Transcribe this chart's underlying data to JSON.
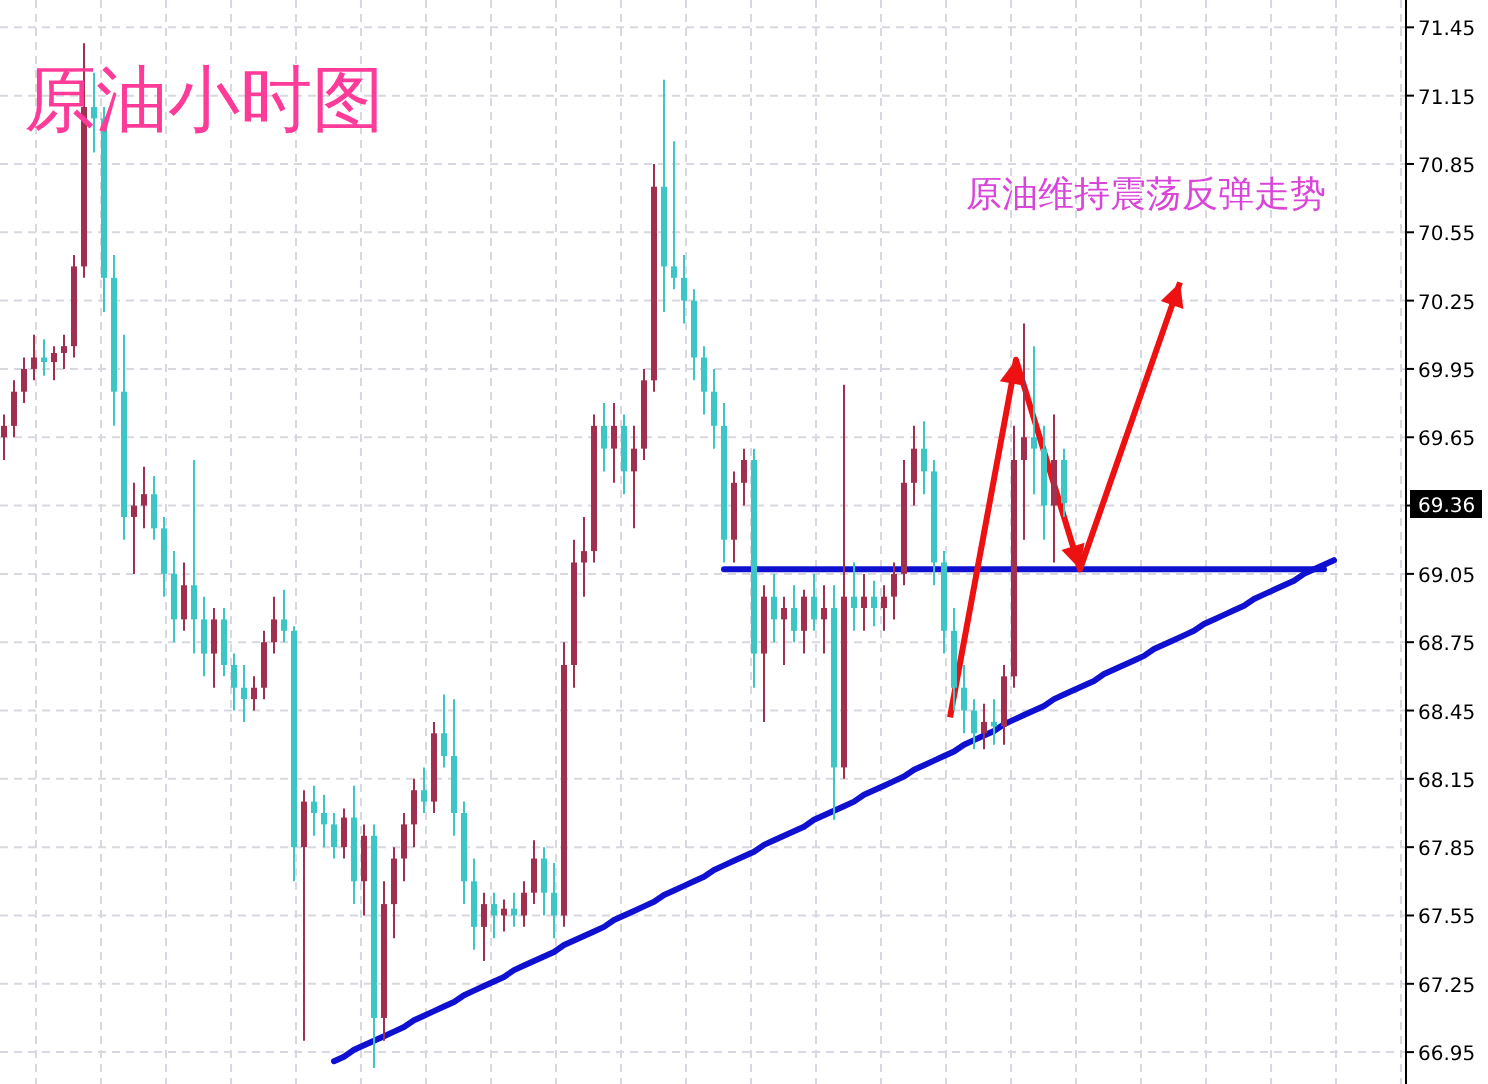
{
  "chart_data": {
    "type": "candlestick",
    "title": "原油小时图",
    "annotations": [
      "原油维持震荡反弹走势",
      "69.36"
    ],
    "ohlc": [
      [
        69.65,
        69.75,
        69.55,
        69.7
      ],
      [
        69.7,
        69.9,
        69.65,
        69.85
      ],
      [
        69.85,
        70.0,
        69.8,
        69.95
      ],
      [
        69.95,
        70.1,
        69.9,
        70.0
      ],
      [
        70.0,
        70.08,
        69.92,
        69.98
      ],
      [
        69.98,
        70.05,
        69.9,
        70.02
      ],
      [
        70.02,
        70.1,
        69.95,
        70.05
      ],
      [
        70.05,
        70.45,
        70.0,
        70.4
      ],
      [
        70.4,
        71.38,
        70.35,
        71.1
      ],
      [
        71.1,
        71.25,
        70.9,
        71.05
      ],
      [
        71.05,
        71.1,
        70.2,
        70.35
      ],
      [
        70.35,
        70.45,
        69.7,
        69.85
      ],
      [
        69.85,
        70.1,
        69.2,
        69.3
      ],
      [
        69.3,
        69.45,
        69.05,
        69.35
      ],
      [
        69.35,
        69.52,
        69.25,
        69.4
      ],
      [
        69.4,
        69.48,
        69.2,
        69.25
      ],
      [
        69.25,
        69.3,
        68.95,
        69.05
      ],
      [
        69.05,
        69.15,
        68.75,
        68.85
      ],
      [
        68.85,
        69.1,
        68.8,
        69.0
      ],
      [
        69.0,
        69.55,
        68.7,
        68.85
      ],
      [
        68.85,
        68.95,
        68.6,
        68.7
      ],
      [
        68.7,
        68.9,
        68.55,
        68.85
      ],
      [
        68.85,
        68.9,
        68.6,
        68.65
      ],
      [
        68.65,
        68.7,
        68.45,
        68.55
      ],
      [
        68.55,
        68.65,
        68.4,
        68.5
      ],
      [
        68.5,
        68.6,
        68.45,
        68.55
      ],
      [
        68.55,
        68.8,
        68.5,
        68.75
      ],
      [
        68.75,
        68.95,
        68.7,
        68.85
      ],
      [
        68.85,
        68.98,
        68.75,
        68.8
      ],
      [
        68.8,
        68.82,
        67.7,
        67.85
      ],
      [
        67.85,
        68.1,
        67.0,
        68.05
      ],
      [
        68.05,
        68.12,
        67.9,
        68.0
      ],
      [
        68.0,
        68.08,
        67.85,
        67.95
      ],
      [
        67.95,
        68.0,
        67.8,
        67.85
      ],
      [
        67.85,
        68.02,
        67.8,
        67.98
      ],
      [
        67.98,
        68.12,
        67.6,
        67.7
      ],
      [
        67.7,
        67.95,
        67.55,
        67.9
      ],
      [
        67.9,
        67.95,
        66.88,
        67.1
      ],
      [
        67.1,
        67.7,
        67.0,
        67.6
      ],
      [
        67.6,
        67.85,
        67.45,
        67.8
      ],
      [
        67.8,
        68.0,
        67.7,
        67.95
      ],
      [
        67.95,
        68.15,
        67.85,
        68.1
      ],
      [
        68.1,
        68.2,
        68.0,
        68.05
      ],
      [
        68.05,
        68.4,
        68.0,
        68.35
      ],
      [
        68.35,
        68.52,
        68.2,
        68.25
      ],
      [
        68.25,
        68.5,
        67.9,
        68.0
      ],
      [
        68.0,
        68.05,
        67.6,
        67.7
      ],
      [
        67.7,
        67.8,
        67.4,
        67.5
      ],
      [
        67.5,
        67.65,
        67.35,
        67.6
      ],
      [
        67.6,
        67.65,
        67.45,
        67.55
      ],
      [
        67.55,
        67.62,
        67.48,
        67.58
      ],
      [
        67.58,
        67.65,
        67.5,
        67.55
      ],
      [
        67.55,
        67.7,
        67.5,
        67.65
      ],
      [
        67.65,
        67.88,
        67.6,
        67.8
      ],
      [
        67.8,
        67.85,
        67.55,
        67.65
      ],
      [
        67.65,
        67.78,
        67.45,
        67.55
      ],
      [
        67.55,
        68.75,
        67.5,
        68.65
      ],
      [
        68.65,
        69.2,
        68.55,
        69.1
      ],
      [
        69.1,
        69.3,
        68.95,
        69.15
      ],
      [
        69.15,
        69.75,
        69.1,
        69.7
      ],
      [
        69.7,
        69.8,
        69.5,
        69.6
      ],
      [
        69.6,
        69.8,
        69.45,
        69.7
      ],
      [
        69.7,
        69.75,
        69.4,
        69.5
      ],
      [
        69.5,
        69.7,
        69.25,
        69.6
      ],
      [
        69.6,
        69.95,
        69.55,
        69.9
      ],
      [
        69.9,
        70.85,
        69.85,
        70.75
      ],
      [
        70.75,
        71.22,
        70.2,
        70.4
      ],
      [
        70.4,
        70.95,
        70.3,
        70.35
      ],
      [
        70.35,
        70.45,
        70.15,
        70.25
      ],
      [
        70.25,
        70.3,
        69.9,
        70.0
      ],
      [
        70.0,
        70.05,
        69.75,
        69.85
      ],
      [
        69.85,
        69.95,
        69.6,
        69.7
      ],
      [
        69.7,
        69.8,
        69.1,
        69.2
      ],
      [
        69.2,
        69.5,
        69.1,
        69.45
      ],
      [
        69.45,
        69.6,
        69.35,
        69.55
      ],
      [
        69.55,
        69.6,
        68.55,
        68.7
      ],
      [
        68.7,
        69.0,
        68.4,
        68.95
      ],
      [
        68.95,
        69.05,
        68.75,
        68.85
      ],
      [
        68.85,
        68.95,
        68.65,
        68.9
      ],
      [
        68.9,
        69.0,
        68.75,
        68.8
      ],
      [
        68.8,
        68.98,
        68.7,
        68.95
      ],
      [
        68.95,
        69.05,
        68.8,
        68.85
      ],
      [
        68.85,
        69.0,
        68.7,
        68.9
      ],
      [
        68.9,
        69.0,
        67.97,
        68.2
      ],
      [
        68.2,
        69.88,
        68.15,
        68.95
      ],
      [
        68.95,
        69.1,
        68.8,
        68.9
      ],
      [
        68.9,
        69.05,
        68.8,
        68.95
      ],
      [
        68.95,
        69.02,
        68.82,
        68.9
      ],
      [
        68.9,
        69.0,
        68.8,
        68.95
      ],
      [
        68.95,
        69.1,
        68.85,
        69.05
      ],
      [
        69.05,
        69.55,
        69.0,
        69.45
      ],
      [
        69.45,
        69.7,
        69.35,
        69.6
      ],
      [
        69.6,
        69.72,
        69.4,
        69.5
      ],
      [
        69.5,
        69.55,
        69.0,
        69.1
      ],
      [
        69.1,
        69.15,
        68.7,
        68.8
      ],
      [
        68.8,
        68.9,
        68.45,
        68.55
      ],
      [
        68.55,
        68.65,
        68.35,
        68.45
      ],
      [
        68.45,
        68.5,
        68.28,
        68.35
      ],
      [
        68.35,
        68.48,
        68.28,
        68.4
      ],
      [
        68.4,
        68.5,
        68.3,
        68.38
      ],
      [
        68.38,
        68.65,
        68.3,
        68.6
      ],
      [
        68.6,
        69.7,
        68.55,
        69.55
      ],
      [
        69.55,
        70.15,
        69.2,
        69.65
      ],
      [
        69.65,
        70.05,
        69.4,
        69.6
      ],
      [
        69.6,
        69.7,
        69.2,
        69.35
      ],
      [
        69.35,
        69.75,
        69.1,
        69.55
      ],
      [
        69.55,
        69.6,
        69.3,
        69.36
      ],
      null,
      null,
      null,
      null,
      null,
      null,
      null,
      null,
      null,
      null,
      null,
      null,
      null,
      null,
      null,
      null,
      null,
      null,
      null,
      null,
      null,
      null,
      null,
      null,
      null,
      null,
      null
    ],
    "colors": [
      "#a0304f",
      "#a0304f",
      "#a0304f",
      "#a0304f",
      "#3ec6c6",
      "#a0304f",
      "#a0304f",
      "#a0304f",
      "#a0304f",
      "#3ec6c6",
      "#3ec6c6",
      "#3ec6c6",
      "#3ec6c6",
      "#a0304f",
      "#a0304f",
      "#3ec6c6",
      "#3ec6c6",
      "#3ec6c6",
      "#a0304f",
      "#3ec6c6",
      "#3ec6c6",
      "#a0304f",
      "#3ec6c6",
      "#3ec6c6",
      "#3ec6c6",
      "#a0304f",
      "#a0304f",
      "#a0304f",
      "#3ec6c6",
      "#3ec6c6",
      "#a0304f",
      "#3ec6c6",
      "#3ec6c6",
      "#3ec6c6",
      "#a0304f",
      "#3ec6c6",
      "#a0304f",
      "#3ec6c6",
      "#a0304f",
      "#a0304f",
      "#a0304f",
      "#a0304f",
      "#3ec6c6",
      "#a0304f",
      "#3ec6c6",
      "#3ec6c6",
      "#3ec6c6",
      "#3ec6c6",
      "#a0304f",
      "#3ec6c6",
      "#a0304f",
      "#3ec6c6",
      "#a0304f",
      "#a0304f",
      "#3ec6c6",
      "#3ec6c6",
      "#a0304f",
      "#a0304f",
      "#a0304f",
      "#a0304f",
      "#3ec6c6",
      "#a0304f",
      "#3ec6c6",
      "#a0304f",
      "#a0304f",
      "#a0304f",
      "#3ec6c6",
      "#3ec6c6",
      "#3ec6c6",
      "#3ec6c6",
      "#3ec6c6",
      "#3ec6c6",
      "#3ec6c6",
      "#a0304f",
      "#a0304f",
      "#3ec6c6",
      "#a0304f",
      "#3ec6c6",
      "#a0304f",
      "#3ec6c6",
      "#a0304f",
      "#3ec6c6",
      "#a0304f",
      "#3ec6c6",
      "#a0304f",
      "#3ec6c6",
      "#a0304f",
      "#3ec6c6",
      "#a0304f",
      "#a0304f",
      "#a0304f",
      "#a0304f",
      "#3ec6c6",
      "#3ec6c6",
      "#3ec6c6",
      "#3ec6c6",
      "#3ec6c6",
      "#3ec6c6",
      "#a0304f",
      "#3ec6c6",
      "#a0304f",
      "#a0304f",
      "#a0304f",
      "#3ec6c6",
      "#3ec6c6",
      "#a0304f",
      "#3ec6c6",
      null,
      null,
      null,
      null,
      null,
      null,
      null,
      null,
      null,
      null,
      null,
      null,
      null,
      null,
      null,
      null,
      null,
      null,
      null,
      null,
      null,
      null,
      null,
      null,
      null,
      null,
      null
    ],
    "series": [
      {
        "type": "line",
        "color": "#1010d0",
        "values": [
          null,
          null,
          null,
          null,
          null,
          null,
          null,
          null,
          null,
          null,
          null,
          null,
          null,
          null,
          null,
          null,
          null,
          null,
          null,
          null,
          null,
          null,
          null,
          null,
          null,
          null,
          null,
          null,
          null,
          null,
          null,
          null,
          null,
          66.91,
          66.93,
          66.96,
          66.98,
          67.0,
          67.02,
          67.04,
          67.06,
          67.09,
          67.11,
          67.13,
          67.15,
          67.17,
          67.2,
          67.22,
          67.24,
          67.26,
          67.28,
          67.31,
          67.33,
          67.35,
          67.37,
          67.39,
          67.42,
          67.44,
          67.46,
          67.48,
          67.5,
          67.53,
          67.55,
          67.57,
          67.59,
          67.61,
          67.64,
          67.66,
          67.68,
          67.7,
          67.72,
          67.75,
          67.77,
          67.79,
          67.81,
          67.83,
          67.86,
          67.88,
          67.9,
          67.92,
          67.94,
          67.97,
          67.99,
          68.01,
          68.03,
          68.05,
          68.08,
          68.1,
          68.12,
          68.14,
          68.16,
          68.19,
          68.21,
          68.23,
          68.25,
          68.27,
          68.3,
          68.32,
          68.34,
          68.36,
          68.39,
          68.41,
          68.43,
          68.45,
          68.47,
          68.5,
          68.52,
          68.54,
          68.56,
          68.58,
          68.61,
          68.63,
          68.65,
          68.67,
          68.69,
          68.72,
          68.74,
          68.76,
          68.78,
          68.8,
          68.83,
          68.85,
          68.87,
          68.89,
          68.91,
          68.94,
          68.96,
          68.98,
          69.0,
          69.02,
          69.05,
          69.07,
          69.09,
          69.11
        ]
      },
      {
        "type": "line",
        "color": "#1010d0",
        "values": [
          null,
          null,
          null,
          null,
          null,
          null,
          null,
          null,
          null,
          null,
          null,
          null,
          null,
          null,
          null,
          null,
          null,
          null,
          null,
          null,
          null,
          null,
          null,
          null,
          null,
          null,
          null,
          null,
          null,
          null,
          null,
          null,
          null,
          null,
          null,
          null,
          null,
          null,
          null,
          null,
          null,
          null,
          null,
          null,
          null,
          null,
          null,
          null,
          null,
          null,
          null,
          null,
          null,
          null,
          null,
          null,
          null,
          null,
          null,
          null,
          null,
          null,
          null,
          null,
          null,
          null,
          null,
          null,
          null,
          null,
          null,
          null,
          69.07,
          69.07,
          69.07,
          69.07,
          69.07,
          69.07,
          69.07,
          69.07,
          69.07,
          69.07,
          69.07,
          69.07,
          69.07,
          69.07,
          69.07,
          69.07,
          69.07,
          69.07,
          69.07,
          69.07,
          69.07,
          69.07,
          69.07,
          69.07,
          69.07,
          69.07,
          69.07,
          69.07,
          69.07,
          69.07,
          69.07,
          69.07,
          69.07,
          69.07,
          69.07,
          69.07,
          69.07,
          69.07,
          69.07,
          69.07,
          69.07,
          69.07,
          69.07,
          69.07,
          69.07,
          69.07,
          69.07,
          69.07,
          69.07,
          69.07,
          69.07,
          69.07,
          69.07,
          69.07,
          69.07,
          69.07,
          69.07,
          69.07,
          69.07,
          69.07,
          69.07,
          null
        ]
      }
    ],
    "ylim": [
      66.81,
      71.57
    ],
    "categories": [
      null,
      null,
      null,
      null,
      null,
      null,
      null,
      null,
      null,
      null,
      null,
      null,
      null,
      null,
      null,
      null,
      null,
      null,
      null,
      null,
      null,
      null,
      null,
      null,
      null,
      null,
      null,
      null,
      null,
      null,
      null,
      null,
      null,
      null,
      null,
      null,
      null,
      null,
      null,
      null,
      null,
      null,
      null,
      null,
      null,
      null,
      null,
      null,
      null,
      null,
      null,
      null,
      null,
      null,
      null,
      null,
      null,
      null,
      null,
      null,
      null,
      null,
      null,
      null,
      null,
      null,
      null,
      null,
      null,
      null,
      null,
      null,
      null,
      null,
      null,
      null,
      null,
      null,
      null,
      null,
      null,
      null,
      null,
      null,
      null,
      null,
      null,
      null,
      null,
      null,
      null,
      null,
      null,
      null,
      null,
      null,
      null,
      null,
      null,
      null,
      null,
      null,
      null,
      null,
      null,
      null,
      null,
      null,
      null,
      null,
      null,
      null,
      null,
      null,
      null,
      null,
      null,
      null,
      null,
      null,
      null,
      null,
      null,
      null,
      null,
      null,
      null,
      null,
      null,
      null,
      null,
      null,
      null,
      null
    ],
    "yticks": [
      66.95,
      67.25,
      67.55,
      67.85,
      68.15,
      68.45,
      68.75,
      69.05,
      {
        "value": 69.35,
        "label": null
      },
      69.65,
      69.95,
      70.25,
      70.55,
      70.85,
      71.15,
      71.45
    ],
    "grid": true
  }
}
